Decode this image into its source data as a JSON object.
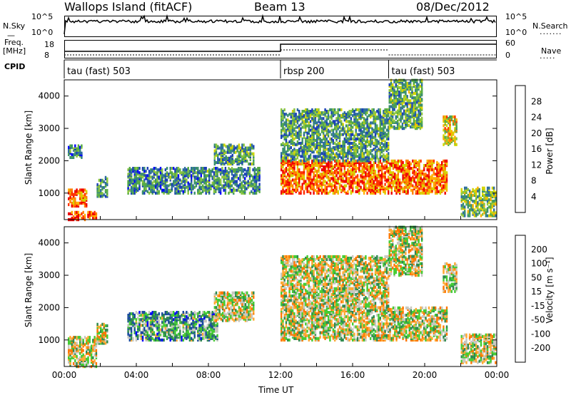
{
  "header": {
    "station": "Wallops Island (fitACF)",
    "beam": "Beam 13",
    "date": "08/Dec/2012"
  },
  "top_panels": {
    "nsky_label": "N.Sky",
    "nsearch_label": "N.Search",
    "nsky_ticks": [
      "10^5",
      "10^0"
    ],
    "nsearch_ticks": [
      "10^5",
      "10^0"
    ],
    "freq_label": "Freq.",
    "freq_unit": "[MHz]",
    "freq_ticks": [
      "18",
      "8"
    ],
    "nave_label": "Nave",
    "nave_ticks": [
      "60",
      "0"
    ],
    "cpid_label": "CPID",
    "cpid_segments": [
      {
        "name": "tau (fast) 503",
        "start": 0,
        "end": 12
      },
      {
        "name": "rbsp 200",
        "start": 12,
        "end": 18
      },
      {
        "name": "tau (fast) 503",
        "start": 18,
        "end": 24
      }
    ]
  },
  "chart_data": [
    {
      "type": "heatmap",
      "title": "",
      "xlabel": "Time UT",
      "ylabel": "Slant Range [km]",
      "xlim": [
        0,
        24
      ],
      "ylim": [
        180,
        4500
      ],
      "yticks": [
        "1000",
        "2000",
        "3000",
        "4000"
      ],
      "colorbar_label": "Power [dB]",
      "colorbar_ticks": [
        "28",
        "24",
        "20",
        "16",
        "12",
        "8",
        "4"
      ],
      "colors": [
        "#0000ff",
        "#1a3fb8",
        "#2e6e9e",
        "#3a8f6e",
        "#55aa44",
        "#8cc63f",
        "#d4d400",
        "#ffb000",
        "#ff7f00",
        "#ff3300",
        "#ee0000"
      ],
      "regions": [
        {
          "t0": 0.2,
          "t1": 1.2,
          "r0": 600,
          "r1": 1100,
          "level": 0.8
        },
        {
          "t0": 0.2,
          "t1": 1.8,
          "r0": 180,
          "r1": 450,
          "level": 0.9
        },
        {
          "t0": 0.2,
          "t1": 1.0,
          "r0": 2100,
          "r1": 2500,
          "level": 0.3
        },
        {
          "t0": 1.8,
          "t1": 2.4,
          "r0": 900,
          "r1": 1500,
          "level": 0.3
        },
        {
          "t0": 3.5,
          "t1": 10.8,
          "r0": 1000,
          "r1": 1800,
          "level": 0.3
        },
        {
          "t0": 8.3,
          "t1": 10.5,
          "r0": 1900,
          "r1": 2500,
          "level": 0.35
        },
        {
          "t0": 12.0,
          "t1": 21.2,
          "r0": 1000,
          "r1": 2000,
          "level": 0.8
        },
        {
          "t0": 12.0,
          "t1": 18.0,
          "r0": 2000,
          "r1": 3600,
          "level": 0.35
        },
        {
          "t0": 18.0,
          "t1": 19.8,
          "r0": 3000,
          "r1": 4500,
          "level": 0.4
        },
        {
          "t0": 21.0,
          "t1": 21.8,
          "r0": 2500,
          "r1": 3400,
          "level": 0.6
        },
        {
          "t0": 22.0,
          "t1": 23.9,
          "r0": 300,
          "r1": 1200,
          "level": 0.45
        }
      ]
    },
    {
      "type": "heatmap",
      "title": "",
      "xlabel": "Time UT",
      "ylabel": "Slant Range [km]",
      "xlim": [
        0,
        24
      ],
      "ylim": [
        180,
        4500
      ],
      "yticks": [
        "1000",
        "2000",
        "3000",
        "4000"
      ],
      "xticks": [
        "00:00",
        "04:00",
        "08:00",
        "12:00",
        "16:00",
        "20:00",
        "00:00"
      ],
      "colorbar_label": "Velocity [m s⁻¹]",
      "colorbar_ticks": [
        "200",
        "100",
        "50",
        "15",
        "-15",
        "-50",
        "-100",
        "-200"
      ],
      "colors": [
        "#0000ff",
        "#1a4a9e",
        "#2e8a4e",
        "#44cc33",
        "#c8c8c0",
        "#ffaa33",
        "#ff7700",
        "#ff3300",
        "#ee0000"
      ],
      "regions": [
        {
          "t0": 0.2,
          "t1": 1.8,
          "r0": 180,
          "r1": 1100,
          "level": 0.5
        },
        {
          "t0": 1.8,
          "t1": 2.4,
          "r0": 900,
          "r1": 1500,
          "level": 0.5
        },
        {
          "t0": 3.5,
          "t1": 8.5,
          "r0": 1000,
          "r1": 1900,
          "level": 0.33
        },
        {
          "t0": 8.3,
          "t1": 10.5,
          "r0": 1600,
          "r1": 2500,
          "level": 0.5
        },
        {
          "t0": 12.0,
          "t1": 21.2,
          "r0": 1000,
          "r1": 2000,
          "level": 0.5
        },
        {
          "t0": 12.0,
          "t1": 18.0,
          "r0": 2000,
          "r1": 3600,
          "level": 0.5
        },
        {
          "t0": 18.0,
          "t1": 19.8,
          "r0": 3000,
          "r1": 4500,
          "level": 0.5
        },
        {
          "t0": 21.0,
          "t1": 21.8,
          "r0": 2500,
          "r1": 3400,
          "level": 0.5
        },
        {
          "t0": 22.0,
          "t1": 23.9,
          "r0": 300,
          "r1": 1200,
          "level": 0.5
        }
      ]
    }
  ]
}
